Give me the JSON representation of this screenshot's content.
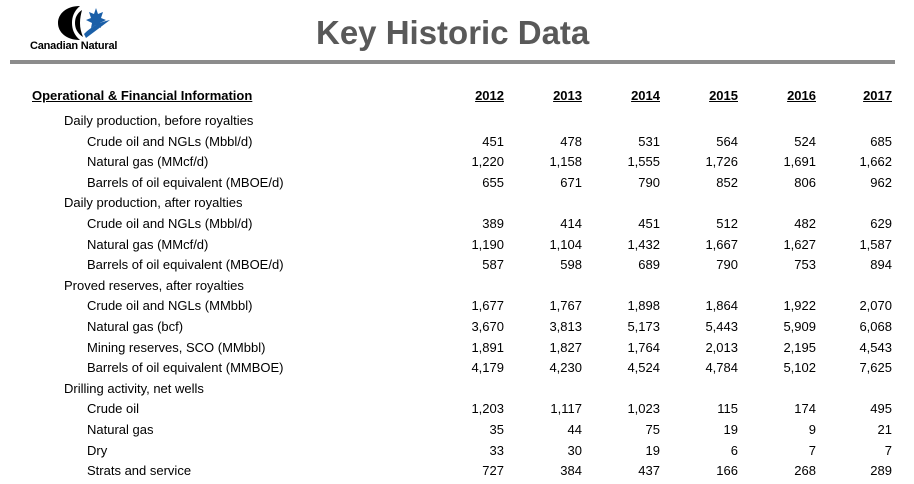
{
  "logo": {
    "company_name": "Canadian Natural"
  },
  "page_title": "Key Historic Data",
  "table": {
    "header_label": "Operational & Financial Information",
    "years": [
      "2012",
      "2013",
      "2014",
      "2015",
      "2016",
      "2017"
    ],
    "rows": [
      {
        "kind": "section",
        "label": "Daily production, before royalties",
        "values": []
      },
      {
        "kind": "item",
        "label": "Crude oil and NGLs (Mbbl/d)",
        "values": [
          "451",
          "478",
          "531",
          "564",
          "524",
          "685"
        ]
      },
      {
        "kind": "item",
        "label": "Natural gas (MMcf/d)",
        "values": [
          "1,220",
          "1,158",
          "1,555",
          "1,726",
          "1,691",
          "1,662"
        ]
      },
      {
        "kind": "item",
        "label": "Barrels of oil equivalent (MBOE/d)",
        "values": [
          "655",
          "671",
          "790",
          "852",
          "806",
          "962"
        ]
      },
      {
        "kind": "section",
        "label": "Daily production, after royalties",
        "values": []
      },
      {
        "kind": "item",
        "label": "Crude oil and NGLs (Mbbl/d)",
        "values": [
          "389",
          "414",
          "451",
          "512",
          "482",
          "629"
        ]
      },
      {
        "kind": "item",
        "label": "Natural gas (MMcf/d)",
        "values": [
          "1,190",
          "1,104",
          "1,432",
          "1,667",
          "1,627",
          "1,587"
        ]
      },
      {
        "kind": "item",
        "label": "Barrels of oil equivalent (MBOE/d)",
        "values": [
          "587",
          "598",
          "689",
          "790",
          "753",
          "894"
        ]
      },
      {
        "kind": "section",
        "label": "Proved reserves, after royalties",
        "values": []
      },
      {
        "kind": "item",
        "label": "Crude oil and NGLs (MMbbl)",
        "values": [
          "1,677",
          "1,767",
          "1,898",
          "1,864",
          "1,922",
          "2,070"
        ]
      },
      {
        "kind": "item",
        "label": "Natural gas (bcf)",
        "values": [
          "3,670",
          "3,813",
          "5,173",
          "5,443",
          "5,909",
          "6,068"
        ]
      },
      {
        "kind": "item",
        "label": "Mining reserves, SCO (MMbbl)",
        "values": [
          "1,891",
          "1,827",
          "1,764",
          "2,013",
          "2,195",
          "4,543"
        ]
      },
      {
        "kind": "item",
        "label": "Barrels of oil equivalent (MMBOE)",
        "values": [
          "4,179",
          "4,230",
          "4,524",
          "4,784",
          "5,102",
          "7,625"
        ]
      },
      {
        "kind": "section",
        "label": "Drilling activity, net wells",
        "values": []
      },
      {
        "kind": "item",
        "label": "Crude oil",
        "values": [
          "1,203",
          "1,117",
          "1,023",
          "115",
          "174",
          "495"
        ]
      },
      {
        "kind": "item",
        "label": "Natural gas",
        "values": [
          "35",
          "44",
          "75",
          "19",
          "9",
          "21"
        ]
      },
      {
        "kind": "item",
        "label": "Dry",
        "values": [
          "33",
          "30",
          "19",
          "6",
          "7",
          "7"
        ]
      },
      {
        "kind": "item",
        "label": "Strats and service",
        "values": [
          "727",
          "384",
          "437",
          "166",
          "268",
          "289"
        ]
      }
    ]
  }
}
